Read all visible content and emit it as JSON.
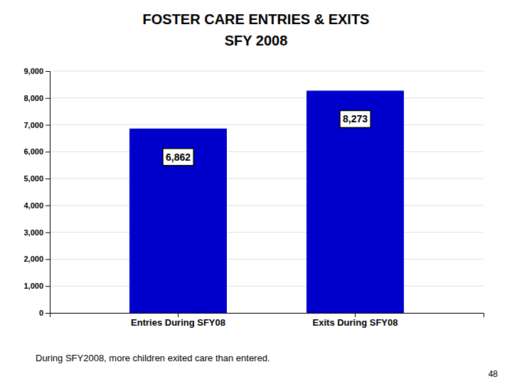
{
  "chart_data": {
    "type": "bar",
    "title": [
      "FOSTER CARE ENTRIES & EXITS",
      "SFY 2008"
    ],
    "subtitle": "During SFY2008, more children exited care than entered.",
    "annotations": [
      "48"
    ],
    "categories": [
      "Entries During SFY08",
      "Exits During SFY08"
    ],
    "values": [
      6862,
      8273
    ],
    "value_labels": [
      "6,862",
      "8,273"
    ],
    "data_labels": true,
    "color": "#0000CC",
    "ylim": [
      0,
      9000
    ],
    "yticks": [
      0,
      {
        "value": 1000,
        "label": "1,000"
      },
      {
        "value": 2000,
        "label": "2,000"
      },
      {
        "value": 3000,
        "label": "3,000"
      },
      {
        "value": 4000,
        "label": "4,000"
      },
      {
        "value": 5000,
        "label": "5,000"
      },
      {
        "value": 6000,
        "label": "6,000"
      },
      {
        "value": 7000,
        "label": "7,000"
      },
      {
        "value": 8000,
        "label": "8,000"
      },
      {
        "value": 9000,
        "label": "9,000"
      }
    ],
    "grid": true
  }
}
